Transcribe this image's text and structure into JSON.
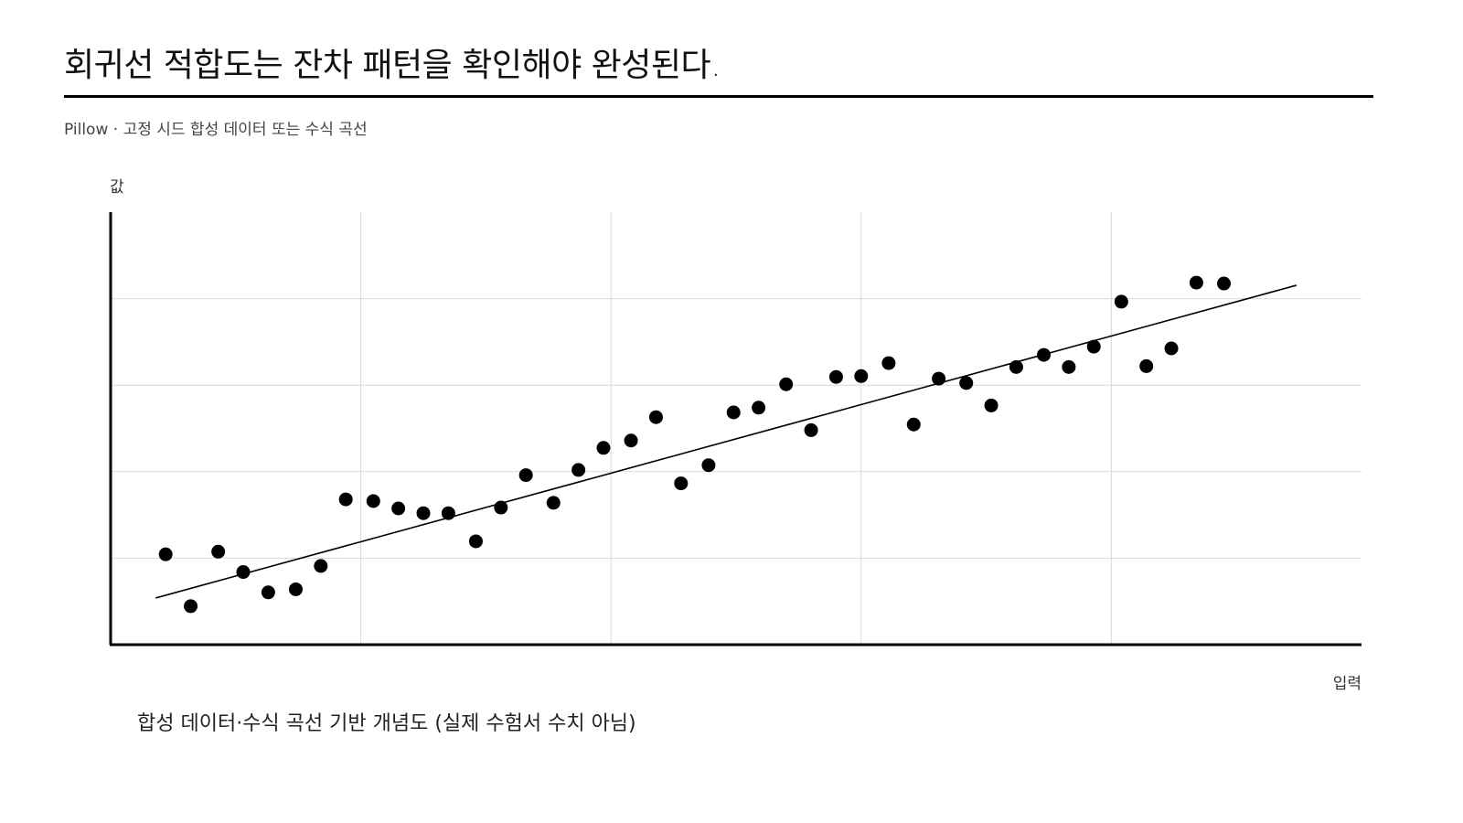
{
  "header": {
    "title": "회귀선 적합도는 잔차 패턴을 확인해야 완성된다.",
    "subtitle": "Pillow · 고정 시드 합성 데이터 또는 수식 곡선"
  },
  "caption": "합성 데이터·수식 곡선 기반 개념도 (실제 수험서 수치 아님)",
  "colors": {
    "point": "#000000",
    "line": "#000000",
    "grid": "#d9d9d9",
    "axis": "#000000"
  },
  "chart_data": {
    "type": "scatter",
    "xlabel": "입력",
    "ylabel": "값",
    "xlim": [
      0,
      50
    ],
    "ylim": [
      0,
      100
    ],
    "grid": true,
    "x_gridlines": [
      10,
      20,
      30,
      40
    ],
    "y_gridlines": [
      20,
      40,
      60,
      80
    ],
    "tick_labels_shown": false,
    "series": [
      {
        "x": [
          2.2,
          3.2,
          4.3,
          5.3,
          6.3,
          7.4,
          8.4,
          9.4,
          10.5,
          11.5,
          12.5,
          13.5,
          14.6,
          15.6,
          16.6,
          17.7,
          18.7,
          19.7,
          20.8,
          21.8,
          22.8,
          23.9,
          24.9,
          25.9,
          27.0,
          28.0,
          29.0,
          30.0,
          31.1,
          32.1,
          33.1,
          34.2,
          35.2,
          36.2,
          37.3,
          38.3,
          39.3,
          40.4,
          41.4,
          42.4,
          43.4,
          44.5
        ],
        "y": [
          20.9,
          8.9,
          21.5,
          16.8,
          12.1,
          12.8,
          18.2,
          33.6,
          33.2,
          31.5,
          30.4,
          30.4,
          23.9,
          31.7,
          39.2,
          32.8,
          40.4,
          45.5,
          47.2,
          52.6,
          37.3,
          41.5,
          53.7,
          54.8,
          60.2,
          49.6,
          61.9,
          62.1,
          65.1,
          50.9,
          61.5,
          60.5,
          55.3,
          64.2,
          67.0,
          64.2,
          68.9,
          79.3,
          64.4,
          68.5,
          83.7,
          83.5
        ]
      }
    ],
    "fit_line": {
      "x": [
        1.8,
        47.4
      ],
      "y": [
        10.8,
        83.1
      ]
    }
  }
}
